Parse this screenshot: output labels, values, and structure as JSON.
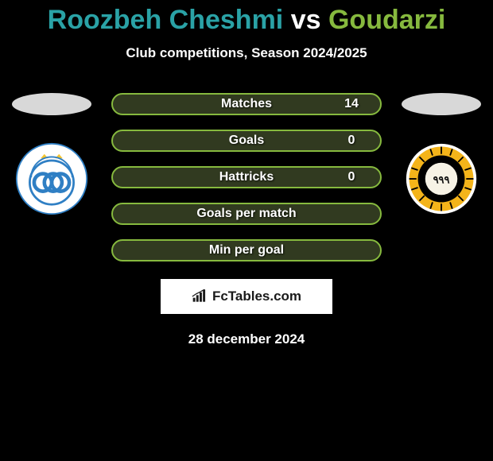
{
  "header": {
    "player1_name": "Roozbeh Cheshmi",
    "vs_word": "vs",
    "player2_name": "Goudarzi",
    "player1_color": "#2aa2a6",
    "player2_color": "#86b93e",
    "subtitle": "Club competitions, Season 2024/2025"
  },
  "stats": {
    "rows": [
      {
        "label": "Matches",
        "left": "",
        "right": "14"
      },
      {
        "label": "Goals",
        "left": "",
        "right": "0"
      },
      {
        "label": "Hattricks",
        "left": "",
        "right": "0"
      },
      {
        "label": "Goals per match",
        "left": "",
        "right": ""
      },
      {
        "label": "Min per goal",
        "left": "",
        "right": ""
      }
    ],
    "bar_border_color": "#86b93e",
    "bar_fill_color": "#5a6a3a",
    "bar_fill_opacity": 0.55
  },
  "left_club": {
    "bg": "#ffffff",
    "acronym": "Esteghlal",
    "ring_color": "#2f7fc4"
  },
  "right_club": {
    "bg": "#000000",
    "acronym": "Sepahan",
    "ring_color": "#f4b41a"
  },
  "brand": {
    "text": "FcTables.com",
    "icon_color": "#1a1a1a",
    "box_bg": "#ffffff"
  },
  "date_line": "28 december 2024"
}
